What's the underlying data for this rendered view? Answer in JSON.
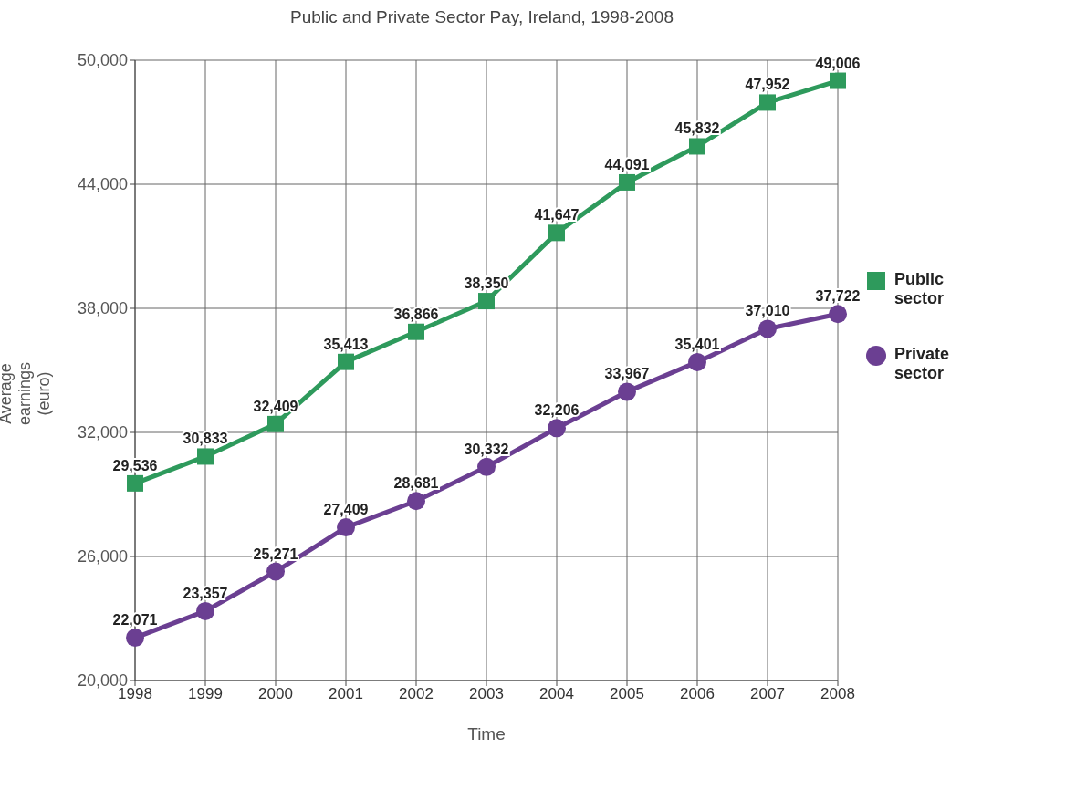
{
  "chart_data": {
    "type": "line",
    "title": "Public and Private Sector Pay, Ireland, 1998-2008",
    "xlabel": "Time",
    "ylabel": "Average earnings (euro)",
    "categories": [
      "1998",
      "1999",
      "2000",
      "2001",
      "2002",
      "2003",
      "2004",
      "2005",
      "2006",
      "2007",
      "2008"
    ],
    "series": [
      {
        "name": "Public sector",
        "color": "#2e9a5c",
        "marker": "square",
        "values": [
          29536,
          30833,
          32409,
          35413,
          36866,
          38350,
          41647,
          44091,
          45832,
          47952,
          49006
        ],
        "value_labels": [
          "29,536",
          "30,833",
          "32,409",
          "35,413",
          "36,866",
          "38,350",
          "41,647",
          "44,091",
          "45,832",
          "47,952",
          "49,006"
        ]
      },
      {
        "name": "Private sector",
        "color": "#6b3f92",
        "marker": "circle",
        "values": [
          22071,
          23357,
          25271,
          27409,
          28681,
          30332,
          32206,
          33967,
          35401,
          37010,
          37722
        ],
        "value_labels": [
          "22,071",
          "23,357",
          "25,271",
          "27,409",
          "28,681",
          "30,332",
          "32,206",
          "33,967",
          "35,401",
          "37,010",
          "37,722"
        ]
      }
    ],
    "ylim": [
      20000,
      50000
    ],
    "yticks": [
      {
        "value": 20000,
        "label": "20,000"
      },
      {
        "value": 26000,
        "label": "26,000"
      },
      {
        "value": 32000,
        "label": "32,000"
      },
      {
        "value": 38000,
        "label": "38,000"
      },
      {
        "value": 44000,
        "label": "44,000"
      },
      {
        "value": 50000,
        "label": "50,000"
      }
    ],
    "grid": true,
    "legend": "right"
  }
}
